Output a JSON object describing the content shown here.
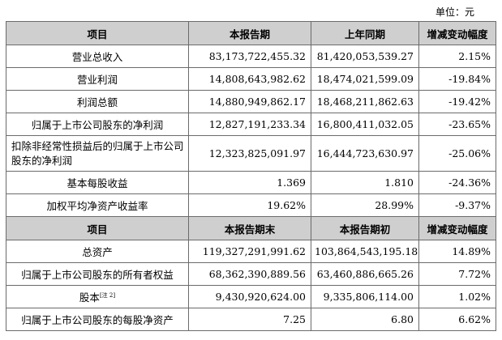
{
  "unit_label": "单位：元",
  "table1": {
    "headers": [
      "项目",
      "本报告期",
      "上年同期",
      "增减变动幅度"
    ],
    "rows": [
      {
        "label": "营业总收入",
        "current": "83,173,722,455.32",
        "prior": "81,420,053,539.27",
        "change": "2.15%"
      },
      {
        "label": "营业利润",
        "current": "14,808,643,982.62",
        "prior": "18,474,021,599.09",
        "change": "-19.84%"
      },
      {
        "label": "利润总额",
        "current": "14,880,949,862.17",
        "prior": "18,468,211,862.63",
        "change": "-19.42%"
      },
      {
        "label": "归属于上市公司股东的净利润",
        "current": "12,827,191,233.34",
        "prior": "16,800,411,032.05",
        "change": "-23.65%"
      },
      {
        "label": "扣除非经常性损益后的归属于上市公司股东的净利润",
        "current": "12,323,825,091.97",
        "prior": "16,444,723,630.97",
        "change": "-25.06%"
      },
      {
        "label": "基本每股收益",
        "current": "1.369",
        "prior": "1.810",
        "change": "-24.36%"
      },
      {
        "label": "加权平均净资产收益率",
        "current": "19.62%",
        "prior": "28.99%",
        "change": "-9.37%"
      }
    ]
  },
  "table2": {
    "headers": [
      "项目",
      "本报告期末",
      "本报告期初",
      "增减变动幅度"
    ],
    "rows": [
      {
        "label": "总资产",
        "current": "119,327,291,991.62",
        "prior": "103,864,543,195.18",
        "change": "14.89%"
      },
      {
        "label": "归属于上市公司股东的所有者权益",
        "current": "68,362,390,889.56",
        "prior": "63,460,886,665.26",
        "change": "7.72%"
      },
      {
        "label": "股本",
        "note": "[注 2]",
        "current": "9,430,920,624.00",
        "prior": "9,335,806,114.00",
        "change": "1.02%"
      },
      {
        "label": "归属于上市公司股东的每股净资产",
        "current": "7.25",
        "prior": "6.80",
        "change": "6.62%"
      }
    ]
  }
}
